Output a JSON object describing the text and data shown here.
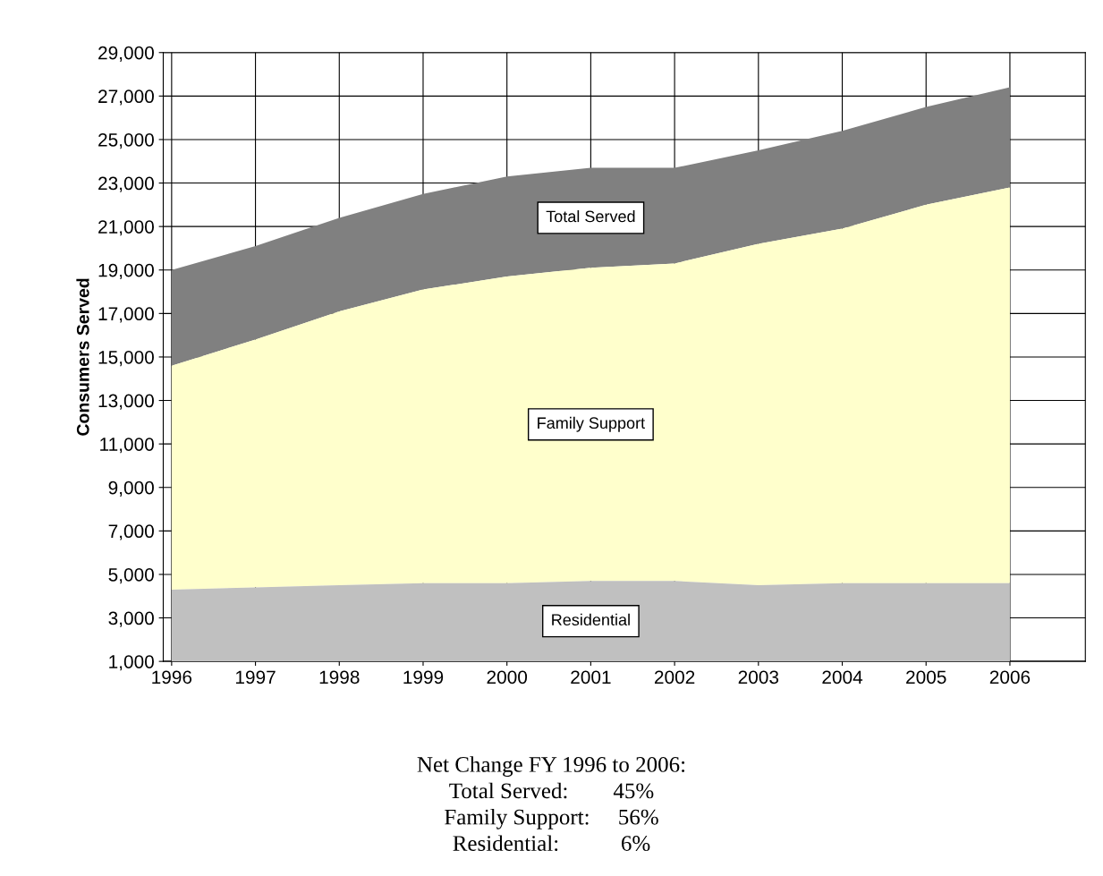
{
  "chart_data": {
    "type": "area",
    "ylabel": "Consumers Served",
    "x": [
      1996,
      1997,
      1998,
      1999,
      2000,
      2001,
      2002,
      2003,
      2004,
      2005,
      2006
    ],
    "series": [
      {
        "name": "Total Served",
        "color": "#808080",
        "values": [
          19000,
          20100,
          21400,
          22500,
          23300,
          23700,
          23700,
          24500,
          25400,
          26500,
          27400
        ]
      },
      {
        "name": "Family Support",
        "color": "#ffffcc",
        "values": [
          14600,
          15800,
          17100,
          18100,
          18700,
          19100,
          19300,
          20200,
          20900,
          22000,
          22800
        ]
      },
      {
        "name": "Residential",
        "color": "#c0c0c0",
        "values": [
          4300,
          4400,
          4500,
          4600,
          4600,
          4700,
          4700,
          4500,
          4600,
          4600,
          4600
        ]
      }
    ],
    "xlim": [
      1995.9,
      2006.9
    ],
    "xticks": [
      1996,
      1997,
      1998,
      1999,
      2000,
      2001,
      2002,
      2003,
      2004,
      2005,
      2006
    ],
    "ylim": [
      1000,
      29000
    ],
    "yticks": [
      {
        "value": 1000,
        "label": "1,000"
      },
      {
        "value": 3000,
        "label": "3,000"
      },
      {
        "value": 5000,
        "label": "5,000"
      },
      {
        "value": 7000,
        "label": "7,000"
      },
      {
        "value": 9000,
        "label": "9,000"
      },
      {
        "value": 11000,
        "label": "11,000"
      },
      {
        "value": 13000,
        "label": "13,000"
      },
      {
        "value": 15000,
        "label": "15,000"
      },
      {
        "value": 17000,
        "label": "17,000"
      },
      {
        "value": 19000,
        "label": "19,000"
      },
      {
        "value": 21000,
        "label": "21,000"
      },
      {
        "value": 23000,
        "label": "23,000"
      },
      {
        "value": 25000,
        "label": "25,000"
      },
      {
        "value": 27000,
        "label": "27,000"
      },
      {
        "value": 29000,
        "label": "29,000"
      }
    ],
    "grid": true,
    "legend": false,
    "annotations": [
      "Net Change FY 1996 to 2006:",
      "Total Served:        45%",
      "Family Support:     56%",
      "Residential:           6%"
    ]
  }
}
